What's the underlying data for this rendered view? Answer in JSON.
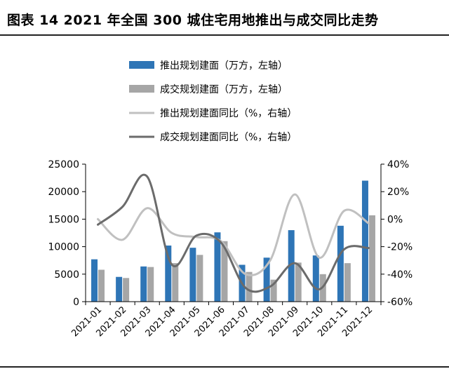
{
  "title": "图表 14 2021 年全国 300 城住宅用地推出与成交同比走势",
  "chart_data": {
    "type": "bar",
    "categories": [
      "2021-01",
      "2021-02",
      "2021-03",
      "2021-04",
      "2021-05",
      "2021-06",
      "2021-07",
      "2021-08",
      "2021-09",
      "2021-10",
      "2021-11",
      "2021-12"
    ],
    "left_axis": {
      "min": 0,
      "max": 25000,
      "ticks": [
        "0",
        "5000",
        "10000",
        "15000",
        "20000",
        "25000"
      ]
    },
    "right_axis": {
      "min": -60,
      "max": 40,
      "ticks": [
        "-60%",
        "-40%",
        "-20%",
        "0%",
        "20%",
        "40%"
      ]
    },
    "series": [
      {
        "name": "推出规划建面（万方，左轴）",
        "type": "bar",
        "axis": "left",
        "color": "#2E75B6",
        "values": [
          7700,
          4500,
          6400,
          10200,
          9800,
          12600,
          6700,
          8000,
          13000,
          8400,
          13800,
          22000
        ]
      },
      {
        "name": "成交规划建面（万方，左轴）",
        "type": "bar",
        "axis": "left",
        "color": "#A6A6A6",
        "values": [
          5800,
          4300,
          6300,
          7000,
          8500,
          11000,
          5400,
          4000,
          7100,
          5000,
          7000,
          15700
        ]
      },
      {
        "name": "推出规划建面同比（%，右轴）",
        "type": "line",
        "axis": "right",
        "color": "#C0C0C0",
        "values": [
          0,
          -15,
          8,
          -10,
          -13,
          -16,
          -40,
          -30,
          18,
          -28,
          6,
          -3
        ]
      },
      {
        "name": "成交规划建面同比（%，右轴）",
        "type": "line",
        "axis": "right",
        "color": "#6B6B6B",
        "values": [
          -4,
          9,
          31,
          -33,
          -12,
          -17,
          -50,
          -49,
          -32,
          -51,
          -22,
          -21
        ]
      }
    ],
    "legend_position": "top-center",
    "grid": false
  }
}
